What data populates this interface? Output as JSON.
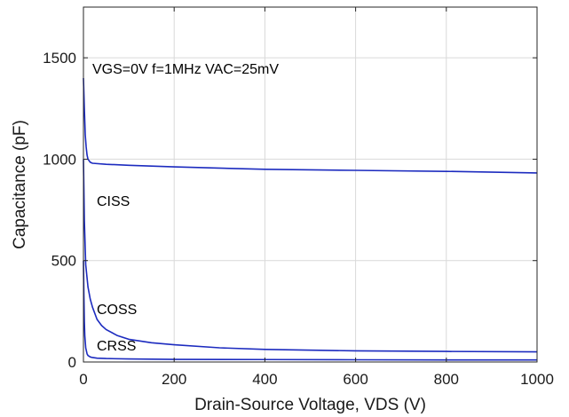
{
  "chart_data": {
    "type": "line",
    "title": "",
    "xlabel": "Drain-Source Voltage, VDS (V)",
    "ylabel": "Capacitance (pF)",
    "xlim": [
      0,
      1000
    ],
    "ylim": [
      0,
      1750
    ],
    "xticks": [
      "0",
      "200",
      "400",
      "600",
      "800",
      "1000"
    ],
    "yticks": [
      "0",
      "500",
      "1000",
      "1500"
    ],
    "grid": true,
    "series_color": "#1c2bbf",
    "annotations": {
      "conditions": "VGS=0V f=1MHz VAC=25mV",
      "ciss": "CISS",
      "coss": "COSS",
      "crss": "CRSS"
    },
    "series": [
      {
        "name": "CISS",
        "x": [
          0,
          2,
          4,
          6,
          8,
          10,
          15,
          20,
          50,
          100,
          200,
          400,
          600,
          800,
          1000
        ],
        "y": [
          1400,
          1250,
          1120,
          1060,
          1020,
          1000,
          985,
          980,
          975,
          970,
          962,
          950,
          945,
          940,
          932
        ]
      },
      {
        "name": "COSS",
        "x": [
          0,
          2,
          5,
          10,
          15,
          20,
          30,
          40,
          50,
          75,
          100,
          150,
          200,
          300,
          400,
          600,
          800,
          1000
        ],
        "y": [
          1000,
          700,
          480,
          370,
          310,
          270,
          210,
          180,
          160,
          130,
          112,
          95,
          85,
          70,
          62,
          55,
          52,
          50
        ]
      },
      {
        "name": "CRSS",
        "x": [
          0,
          1,
          2,
          3,
          5,
          8,
          10,
          15,
          20,
          30,
          50,
          100,
          200,
          400,
          600,
          800,
          1000
        ],
        "y": [
          500,
          330,
          200,
          130,
          70,
          40,
          32,
          25,
          22,
          19,
          17,
          15,
          13,
          12,
          11,
          10,
          10
        ]
      }
    ]
  }
}
